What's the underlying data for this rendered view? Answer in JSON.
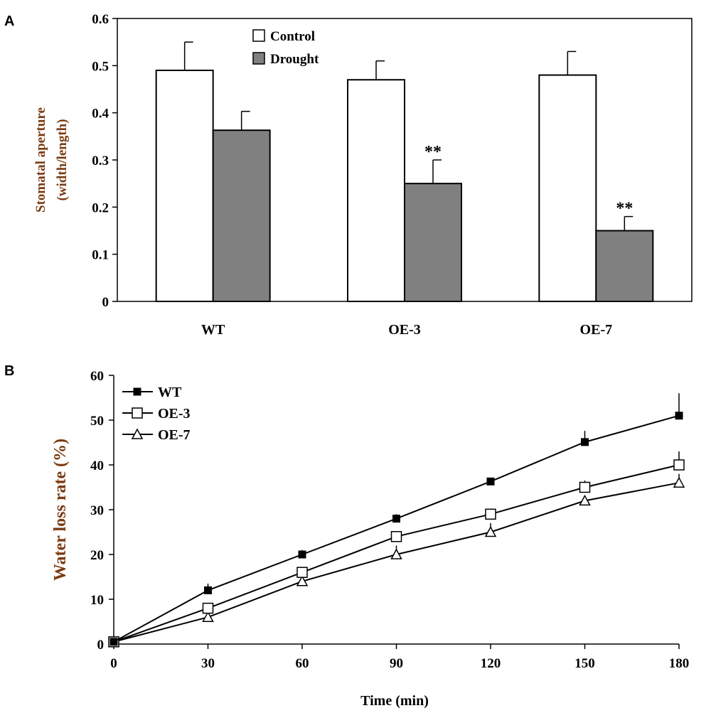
{
  "chart_data": [
    {
      "panel": "A",
      "type": "bar",
      "categories": [
        "WT",
        "OE-3",
        "OE-7"
      ],
      "series": [
        {
          "name": "Control",
          "color": "#ffffff",
          "values": [
            0.49,
            0.47,
            0.48
          ],
          "errors": [
            0.06,
            0.04,
            0.05
          ]
        },
        {
          "name": "Drought",
          "color": "#808080",
          "values": [
            0.363,
            0.25,
            0.15
          ],
          "errors": [
            0.04,
            0.05,
            0.03
          ]
        }
      ],
      "annotations": [
        "",
        "**",
        "**"
      ],
      "ylabel_line1": "Stomatal aperture",
      "ylabel_line2": "(width/length)",
      "xlabel": "",
      "ylim": [
        0,
        0.6
      ],
      "yticks": [
        0,
        0.1,
        0.2,
        0.3,
        0.4,
        0.5,
        0.6
      ],
      "ytick_labels": [
        "0",
        "0.1",
        "0.2",
        "0.3",
        "0.4",
        "0.5",
        "0.6"
      ],
      "legend_position": "top-center",
      "grid": false
    },
    {
      "panel": "B",
      "type": "line",
      "x": [
        0,
        30,
        60,
        90,
        120,
        150,
        180
      ],
      "series": [
        {
          "name": "WT",
          "marker": "filled-square",
          "values": [
            0.5,
            12,
            20,
            28,
            36.3,
            45.1,
            51
          ],
          "errors": [
            0,
            1.5,
            1,
            1,
            0.8,
            2.5,
            5
          ]
        },
        {
          "name": "OE-3",
          "marker": "open-square",
          "values": [
            0.5,
            8,
            16,
            24,
            29,
            35,
            40
          ],
          "errors": [
            0,
            1,
            1,
            1,
            1,
            1.5,
            3
          ]
        },
        {
          "name": "OE-7",
          "marker": "open-triangle",
          "values": [
            0.5,
            6,
            14,
            20,
            25,
            32,
            36
          ],
          "errors": [
            0,
            1,
            1,
            2,
            2,
            1,
            2
          ]
        }
      ],
      "xlabel": "Time (min)",
      "ylabel": "Water loss rate (%)",
      "xlim": [
        0,
        180
      ],
      "ylim": [
        0,
        60
      ],
      "xticks": [
        0,
        30,
        60,
        90,
        120,
        150,
        180
      ],
      "xtick_labels": [
        "0",
        "30",
        "60",
        "90",
        "120",
        "150",
        "180"
      ],
      "yticks": [
        0,
        10,
        20,
        30,
        40,
        50,
        60
      ],
      "ytick_labels": [
        "0",
        "10",
        "20",
        "30",
        "40",
        "50",
        "60"
      ],
      "legend_position": "top-left",
      "grid": false
    }
  ],
  "colors": {
    "axis": "#000000",
    "axis_label_brown": "#7a3b12",
    "drought_fill": "#808080"
  }
}
